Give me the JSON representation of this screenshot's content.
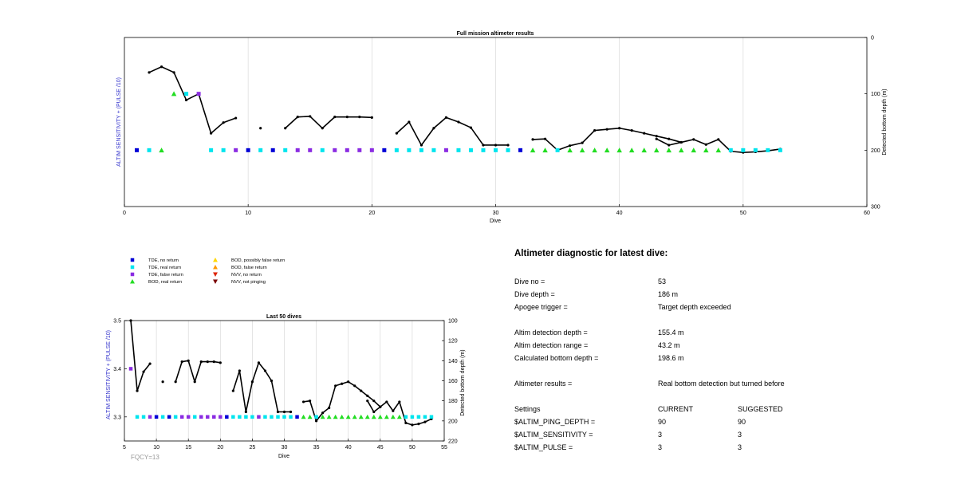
{
  "chart_data": [
    {
      "type": "scatter",
      "title": "Full mission altimeter results",
      "xlabel": "Dive",
      "ylabel": "ALTIM SENSITIVITY + (PULSE /10)",
      "y2label": "Detected bottom depth (m)",
      "xlim": [
        0,
        60
      ],
      "x_ticks": [
        "0",
        "10",
        "20",
        "30",
        "40",
        "50",
        "60"
      ],
      "y2lim": [
        0,
        300
      ],
      "y2_reversed": true,
      "y2_ticks": [
        "0",
        "100",
        "200",
        "300"
      ],
      "grid": "x",
      "bottom_depth_series": [
        [
          [
            2,
            62
          ],
          [
            3,
            52
          ],
          [
            4,
            62
          ],
          [
            5,
            111
          ],
          [
            6,
            100
          ],
          [
            7,
            170
          ],
          [
            8,
            151
          ],
          [
            9,
            143
          ]
        ],
        [
          [
            11,
            161
          ]
        ],
        [
          [
            13,
            161
          ],
          [
            14,
            141
          ],
          [
            15,
            140
          ],
          [
            16,
            161
          ],
          [
            17,
            141
          ],
          [
            18,
            141
          ],
          [
            19,
            141
          ],
          [
            20,
            142
          ]
        ],
        [
          [
            22,
            170
          ],
          [
            23,
            150
          ],
          [
            24,
            191
          ],
          [
            25,
            161
          ],
          [
            26,
            142
          ],
          [
            27,
            150
          ],
          [
            28,
            160
          ],
          [
            29,
            191
          ],
          [
            30,
            191
          ],
          [
            31,
            191
          ]
        ],
        [
          [
            33,
            181
          ],
          [
            34,
            180
          ],
          [
            35,
            200
          ],
          [
            36,
            192
          ],
          [
            37,
            187
          ],
          [
            38,
            165
          ],
          [
            39,
            163
          ],
          [
            40,
            161
          ],
          [
            41,
            165
          ],
          [
            42,
            170
          ],
          [
            43,
            175
          ],
          [
            44,
            180
          ],
          [
            45,
            186
          ],
          [
            46,
            181
          ],
          [
            47,
            190
          ],
          [
            48,
            181
          ],
          [
            49,
            202
          ],
          [
            50,
            204
          ],
          [
            51,
            203
          ],
          [
            52,
            201
          ],
          [
            53,
            198
          ]
        ],
        [
          [
            43,
            180
          ],
          [
            44,
            191
          ],
          [
            45,
            186
          ]
        ]
      ],
      "detections": [
        {
          "x": 1,
          "y": 200,
          "type": "TDE, no return"
        },
        {
          "x": 2,
          "y": 200,
          "type": "TDE, real return"
        },
        {
          "x": 3,
          "y": 200,
          "type": "BOD, real return"
        },
        {
          "x": 4,
          "y": 100,
          "type": "BOD, real return"
        },
        {
          "x": 5,
          "y": 100,
          "type": "TDE, real return"
        },
        {
          "x": 6,
          "y": 100,
          "type": "TDE, false return"
        },
        {
          "x": 7,
          "y": 200,
          "type": "TDE, real return"
        },
        {
          "x": 8,
          "y": 200,
          "type": "TDE, real return"
        },
        {
          "x": 9,
          "y": 200,
          "type": "TDE, false return"
        },
        {
          "x": 10,
          "y": 200,
          "type": "TDE, no return"
        },
        {
          "x": 11,
          "y": 200,
          "type": "TDE, real return"
        },
        {
          "x": 12,
          "y": 200,
          "type": "TDE, no return"
        },
        {
          "x": 13,
          "y": 200,
          "type": "TDE, real return"
        },
        {
          "x": 14,
          "y": 200,
          "type": "TDE, false return"
        },
        {
          "x": 15,
          "y": 200,
          "type": "TDE, false return"
        },
        {
          "x": 16,
          "y": 200,
          "type": "TDE, real return"
        },
        {
          "x": 17,
          "y": 200,
          "type": "TDE, false return"
        },
        {
          "x": 18,
          "y": 200,
          "type": "TDE, false return"
        },
        {
          "x": 19,
          "y": 200,
          "type": "TDE, false return"
        },
        {
          "x": 20,
          "y": 200,
          "type": "TDE, false return"
        },
        {
          "x": 21,
          "y": 200,
          "type": "TDE, no return"
        },
        {
          "x": 22,
          "y": 200,
          "type": "TDE, real return"
        },
        {
          "x": 23,
          "y": 200,
          "type": "TDE, real return"
        },
        {
          "x": 24,
          "y": 200,
          "type": "TDE, real return"
        },
        {
          "x": 25,
          "y": 200,
          "type": "TDE, real return"
        },
        {
          "x": 26,
          "y": 200,
          "type": "TDE, false return"
        },
        {
          "x": 27,
          "y": 200,
          "type": "TDE, real return"
        },
        {
          "x": 28,
          "y": 200,
          "type": "TDE, real return"
        },
        {
          "x": 29,
          "y": 200,
          "type": "TDE, real return"
        },
        {
          "x": 30,
          "y": 200,
          "type": "TDE, real return"
        },
        {
          "x": 31,
          "y": 200,
          "type": "TDE, real return"
        },
        {
          "x": 32,
          "y": 200,
          "type": "TDE, no return"
        },
        {
          "x": 33,
          "y": 200,
          "type": "BOD, real return"
        },
        {
          "x": 34,
          "y": 200,
          "type": "BOD, real return"
        },
        {
          "x": 35,
          "y": 200,
          "type": "TDE, real return"
        },
        {
          "x": 36,
          "y": 200,
          "type": "BOD, real return"
        },
        {
          "x": 37,
          "y": 200,
          "type": "BOD, real return"
        },
        {
          "x": 38,
          "y": 200,
          "type": "BOD, real return"
        },
        {
          "x": 39,
          "y": 200,
          "type": "BOD, real return"
        },
        {
          "x": 40,
          "y": 200,
          "type": "BOD, real return"
        },
        {
          "x": 41,
          "y": 200,
          "type": "BOD, real return"
        },
        {
          "x": 42,
          "y": 200,
          "type": "BOD, real return"
        },
        {
          "x": 43,
          "y": 200,
          "type": "BOD, real return"
        },
        {
          "x": 44,
          "y": 200,
          "type": "BOD, real return"
        },
        {
          "x": 45,
          "y": 200,
          "type": "BOD, real return"
        },
        {
          "x": 46,
          "y": 200,
          "type": "BOD, real return"
        },
        {
          "x": 47,
          "y": 200,
          "type": "BOD, real return"
        },
        {
          "x": 48,
          "y": 200,
          "type": "BOD, real return"
        },
        {
          "x": 49,
          "y": 200,
          "type": "TDE, real return"
        },
        {
          "x": 50,
          "y": 200,
          "type": "TDE, real return"
        },
        {
          "x": 51,
          "y": 200,
          "type": "TDE, real return"
        },
        {
          "x": 52,
          "y": 200,
          "type": "TDE, real return"
        },
        {
          "x": 53,
          "y": 200,
          "type": "TDE, real return"
        }
      ]
    },
    {
      "type": "scatter",
      "title": "Last 50 dives",
      "xlabel": "Dive",
      "ylabel": "ALTIM SENSITIVITY + (PULSE /10)",
      "y2label": "Detected bottom depth (m)",
      "xlim": [
        5,
        55
      ],
      "x_ticks": [
        "5",
        "10",
        "15",
        "20",
        "25",
        "30",
        "35",
        "40",
        "45",
        "50",
        "55"
      ],
      "ylim": [
        3.25,
        3.5
      ],
      "y_ticks": [
        "3.3",
        "3.4",
        "3.5"
      ],
      "y2lim": [
        100,
        220
      ],
      "y2_reversed": true,
      "y2_ticks": [
        "100",
        "120",
        "140",
        "160",
        "180",
        "200",
        "220"
      ],
      "grid": "x",
      "note": "FQCY=13",
      "bottom_depth_series": [
        [
          [
            6,
            100
          ],
          [
            7,
            170
          ],
          [
            8,
            151
          ],
          [
            9,
            143
          ]
        ],
        [
          [
            11,
            161
          ]
        ],
        [
          [
            13,
            161
          ],
          [
            14,
            141
          ],
          [
            15,
            140
          ],
          [
            16,
            161
          ],
          [
            17,
            141
          ],
          [
            18,
            141
          ],
          [
            19,
            141
          ],
          [
            20,
            142
          ]
        ],
        [
          [
            22,
            170
          ],
          [
            23,
            150
          ],
          [
            24,
            191
          ],
          [
            25,
            161
          ],
          [
            26,
            142
          ],
          [
            27,
            150
          ],
          [
            28,
            160
          ],
          [
            29,
            191
          ],
          [
            30,
            191
          ],
          [
            31,
            191
          ]
        ],
        [
          [
            33,
            181
          ],
          [
            34,
            180
          ],
          [
            35,
            200
          ],
          [
            36,
            192
          ],
          [
            37,
            187
          ],
          [
            38,
            165
          ],
          [
            39,
            163
          ],
          [
            40,
            161
          ],
          [
            41,
            165
          ],
          [
            42,
            170
          ],
          [
            43,
            175
          ],
          [
            44,
            180
          ],
          [
            45,
            186
          ],
          [
            46,
            181
          ],
          [
            47,
            190
          ],
          [
            48,
            181
          ],
          [
            49,
            202
          ],
          [
            50,
            204
          ],
          [
            51,
            203
          ],
          [
            52,
            201
          ],
          [
            53,
            198
          ]
        ],
        [
          [
            43,
            180
          ],
          [
            44,
            191
          ],
          [
            45,
            186
          ]
        ]
      ],
      "detections": [
        {
          "x": 6,
          "y": 3.4,
          "type": "TDE, false return"
        },
        {
          "x": 7,
          "y": 3.3,
          "type": "TDE, real return"
        },
        {
          "x": 8,
          "y": 3.3,
          "type": "TDE, real return"
        },
        {
          "x": 9,
          "y": 3.3,
          "type": "TDE, false return"
        },
        {
          "x": 10,
          "y": 3.3,
          "type": "TDE, no return"
        },
        {
          "x": 11,
          "y": 3.3,
          "type": "TDE, real return"
        },
        {
          "x": 12,
          "y": 3.3,
          "type": "TDE, no return"
        },
        {
          "x": 13,
          "y": 3.3,
          "type": "TDE, real return"
        },
        {
          "x": 14,
          "y": 3.3,
          "type": "TDE, false return"
        },
        {
          "x": 15,
          "y": 3.3,
          "type": "TDE, false return"
        },
        {
          "x": 16,
          "y": 3.3,
          "type": "TDE, real return"
        },
        {
          "x": 17,
          "y": 3.3,
          "type": "TDE, false return"
        },
        {
          "x": 18,
          "y": 3.3,
          "type": "TDE, false return"
        },
        {
          "x": 19,
          "y": 3.3,
          "type": "TDE, false return"
        },
        {
          "x": 20,
          "y": 3.3,
          "type": "TDE, false return"
        },
        {
          "x": 21,
          "y": 3.3,
          "type": "TDE, no return"
        },
        {
          "x": 22,
          "y": 3.3,
          "type": "TDE, real return"
        },
        {
          "x": 23,
          "y": 3.3,
          "type": "TDE, real return"
        },
        {
          "x": 24,
          "y": 3.3,
          "type": "TDE, real return"
        },
        {
          "x": 25,
          "y": 3.3,
          "type": "TDE, real return"
        },
        {
          "x": 26,
          "y": 3.3,
          "type": "TDE, false return"
        },
        {
          "x": 27,
          "y": 3.3,
          "type": "TDE, real return"
        },
        {
          "x": 28,
          "y": 3.3,
          "type": "TDE, real return"
        },
        {
          "x": 29,
          "y": 3.3,
          "type": "TDE, real return"
        },
        {
          "x": 30,
          "y": 3.3,
          "type": "TDE, real return"
        },
        {
          "x": 31,
          "y": 3.3,
          "type": "TDE, real return"
        },
        {
          "x": 32,
          "y": 3.3,
          "type": "TDE, no return"
        },
        {
          "x": 33,
          "y": 3.3,
          "type": "BOD, real return"
        },
        {
          "x": 34,
          "y": 3.3,
          "type": "BOD, real return"
        },
        {
          "x": 35,
          "y": 3.3,
          "type": "TDE, real return"
        },
        {
          "x": 36,
          "y": 3.3,
          "type": "BOD, real return"
        },
        {
          "x": 37,
          "y": 3.3,
          "type": "BOD, real return"
        },
        {
          "x": 38,
          "y": 3.3,
          "type": "BOD, real return"
        },
        {
          "x": 39,
          "y": 3.3,
          "type": "BOD, real return"
        },
        {
          "x": 40,
          "y": 3.3,
          "type": "BOD, real return"
        },
        {
          "x": 41,
          "y": 3.3,
          "type": "BOD, real return"
        },
        {
          "x": 42,
          "y": 3.3,
          "type": "BOD, real return"
        },
        {
          "x": 43,
          "y": 3.3,
          "type": "BOD, real return"
        },
        {
          "x": 44,
          "y": 3.3,
          "type": "BOD, real return"
        },
        {
          "x": 45,
          "y": 3.3,
          "type": "BOD, real return"
        },
        {
          "x": 46,
          "y": 3.3,
          "type": "BOD, real return"
        },
        {
          "x": 47,
          "y": 3.3,
          "type": "BOD, real return"
        },
        {
          "x": 48,
          "y": 3.3,
          "type": "BOD, real return"
        },
        {
          "x": 49,
          "y": 3.3,
          "type": "TDE, real return"
        },
        {
          "x": 50,
          "y": 3.3,
          "type": "TDE, real return"
        },
        {
          "x": 51,
          "y": 3.3,
          "type": "TDE, real return"
        },
        {
          "x": 52,
          "y": 3.3,
          "type": "TDE, real return"
        },
        {
          "x": 53,
          "y": 3.3,
          "type": "TDE, real return"
        }
      ]
    }
  ],
  "legend": [
    {
      "label": "TDE, no return",
      "marker": "square",
      "color": "#0000d6"
    },
    {
      "label": "TDE, real return",
      "marker": "square",
      "color": "#00e5ee"
    },
    {
      "label": "TDE, false return",
      "marker": "square",
      "color": "#8a2be2"
    },
    {
      "label": "BOD, real return",
      "marker": "triangle-up",
      "color": "#22dd22"
    },
    {
      "label": "BOD, possibly false return",
      "marker": "triangle-up",
      "color": "#ffd700"
    },
    {
      "label": "BOD, false return",
      "marker": "triangle-up",
      "color": "#ff9900"
    },
    {
      "label": "NVV, no return",
      "marker": "triangle-down",
      "color": "#dd2200"
    },
    {
      "label": "NVV, not pinging",
      "marker": "triangle-down",
      "color": "#7a0000"
    }
  ],
  "colors": {
    "ylabel": "#3333cc",
    "line": "#000000",
    "grid": "#d9d9d9",
    "note": "#999999"
  },
  "diagnostic": {
    "title": "Altimeter diagnostic for latest dive:",
    "dive_no_label": "Dive no =",
    "dive_no": "53",
    "dive_depth_label": "Dive depth =",
    "dive_depth": "186 m",
    "apogee_label": "Apogee trigger =",
    "apogee": "Target depth exceeded",
    "detect_depth_label": "Altim detection depth =",
    "detect_depth": "155.4 m",
    "detect_range_label": "Altim detection range =",
    "detect_range": "43.2 m",
    "calc_depth_label": "Calculated bottom depth =",
    "calc_depth": "198.6 m",
    "results_label": "Altimeter results =",
    "results": "Real bottom detection but turned before",
    "settings_label": "Settings",
    "current_label": "CURRENT",
    "suggested_label": "SUGGESTED",
    "settings": [
      {
        "name": "$ALTIM_PING_DEPTH =",
        "current": "90",
        "suggested": "90"
      },
      {
        "name": "$ALTIM_SENSITIVITY =",
        "current": "3",
        "suggested": "3"
      },
      {
        "name": "$ALTIM_PULSE =",
        "current": "3",
        "suggested": "3"
      }
    ]
  }
}
